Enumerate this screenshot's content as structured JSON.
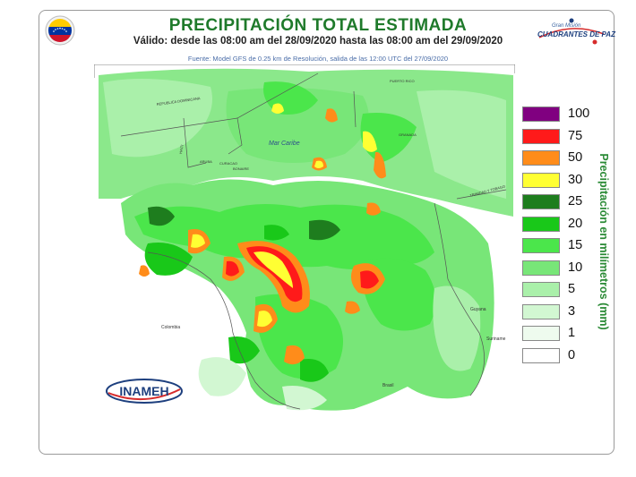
{
  "header": {
    "title": "PRECIPITACIÓN TOTAL ESTIMADA",
    "validity": "Válido: desde las 08:00 am del 28/09/2020 hasta las 08:00 am del 29/09/2020",
    "source": "Fuente: Model GFS de 0.25 km de Resolución, salida de las 12:00 UTC del 27/09/2020"
  },
  "logos": {
    "right_line1": "Gran Misión",
    "right_line2": "CUADRANTES DE PAZ",
    "inameh": "INAMEH"
  },
  "map": {
    "sea_label": "Mar Caribe",
    "country_labels": [
      "Colombia",
      "Brasil",
      "Guyana",
      "Suriname"
    ],
    "territory_labels": [
      "REPUBLICA DOMINICANA",
      "PUERTO RICO",
      "HAITI",
      "ARUBA",
      "CURACAO",
      "BONAIRE",
      "GRANADA",
      "TRINIDAD Y TOBAGO"
    ]
  },
  "legend": {
    "title": "Precipitación en milímetros (mm)",
    "items": [
      {
        "label": "100",
        "color": "#800080"
      },
      {
        "label": "75",
        "color": "#ff1a1a"
      },
      {
        "label": "50",
        "color": "#ff8c1a"
      },
      {
        "label": "30",
        "color": "#ffff33"
      },
      {
        "label": "25",
        "color": "#1e7d1e"
      },
      {
        "label": "20",
        "color": "#19c819"
      },
      {
        "label": "15",
        "color": "#4be64b"
      },
      {
        "label": "10",
        "color": "#78e678"
      },
      {
        "label": "5",
        "color": "#aaf0aa"
      },
      {
        "label": "3",
        "color": "#d2f7d2"
      },
      {
        "label": "1",
        "color": "#eefbee"
      },
      {
        "label": "0",
        "color": "#ffffff"
      }
    ]
  }
}
